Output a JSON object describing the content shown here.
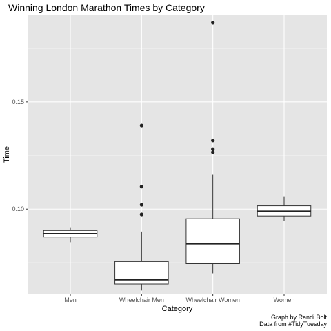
{
  "chart_data": {
    "type": "boxplot",
    "title": "Winning London Marathon Times by Category",
    "xlabel": "Category",
    "ylabel": "Time",
    "ylim": [
      0.0605,
      0.1905
    ],
    "yticks": [
      0.1,
      0.15
    ],
    "ytick_labels": [
      "0.10",
      "0.15"
    ],
    "grid": true,
    "categories": [
      "Men",
      "Wheelchair Men",
      "Wheelchair Women",
      "Women"
    ],
    "boxes": [
      {
        "category": "Men",
        "whisker_low": 0.0845,
        "q1": 0.087,
        "median": 0.0885,
        "q3": 0.09,
        "whisker_high": 0.0915,
        "outliers": []
      },
      {
        "category": "Wheelchair Men",
        "whisker_low": 0.062,
        "q1": 0.065,
        "median": 0.067,
        "q3": 0.0755,
        "whisker_high": 0.0895,
        "outliers": [
          0.0975,
          0.102,
          0.1105,
          0.139
        ]
      },
      {
        "category": "Wheelchair Women",
        "whisker_low": 0.07,
        "q1": 0.0745,
        "median": 0.0838,
        "q3": 0.0955,
        "whisker_high": 0.116,
        "outliers": [
          0.1265,
          0.128,
          0.132,
          0.187
        ]
      },
      {
        "category": "Women",
        "whisker_low": 0.0945,
        "q1": 0.0968,
        "median": 0.099,
        "q3": 0.1015,
        "whisker_high": 0.106,
        "outliers": []
      }
    ],
    "caption": [
      "Graph by Randi Bolt",
      "Data from #TidyTuesday"
    ]
  }
}
